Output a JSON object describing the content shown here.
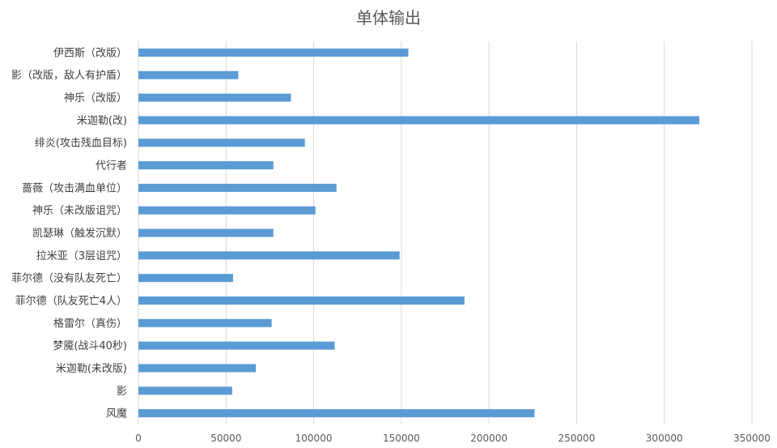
{
  "chart_data": {
    "type": "bar",
    "orientation": "horizontal",
    "title": "单体输出",
    "categories": [
      "伊西斯（改版）",
      "影（改版，敌人有护盾）",
      "神乐（改版）",
      "米迦勒(改)",
      "绯炎(攻击残血目标)",
      "代行者",
      "蔷薇（攻击满血单位）",
      "神乐（未改版诅咒）",
      "凯瑟琳（触发沉默）",
      "拉米亚（3层诅咒）",
      "菲尔德（没有队友死亡）",
      "菲尔德（队友死亡4人）",
      "格雷尔（真伤）",
      "梦魇(战斗40秒)",
      "米迦勒(未改版)",
      "影",
      "风魔"
    ],
    "values": [
      154000,
      57000,
      87000,
      320000,
      95000,
      77000,
      113000,
      101000,
      77000,
      149000,
      54000,
      186000,
      76000,
      112000,
      67000,
      53500,
      226000
    ],
    "xlim": [
      0,
      350000
    ],
    "xticks": [
      0,
      50000,
      100000,
      150000,
      200000,
      250000,
      300000,
      350000
    ],
    "grid": "vertical",
    "legend": "none",
    "bar_color": "#5B9BD5",
    "grid_color": "#D9D9D9"
  }
}
